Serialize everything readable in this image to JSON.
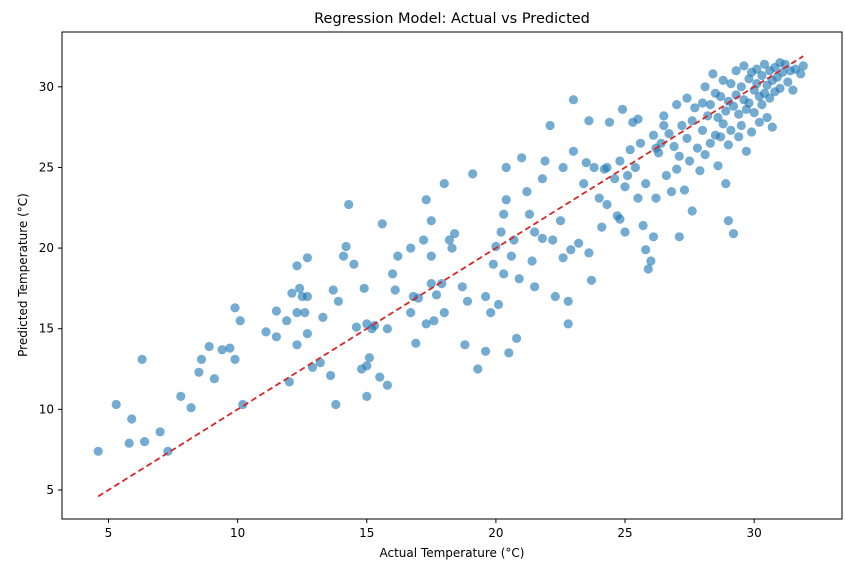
{
  "chart_data": {
    "type": "scatter",
    "title": "Regression Model: Actual vs Predicted",
    "xlabel": "Actual Temperature (°C)",
    "ylabel": "Predicted Temperature (°C)",
    "xlim": [
      3.2,
      33.4
    ],
    "ylim": [
      3.2,
      33.4
    ],
    "xticks": [
      5,
      10,
      15,
      20,
      25,
      30
    ],
    "yticks": [
      5,
      10,
      15,
      20,
      25,
      30
    ],
    "grid": false,
    "colors": {
      "points": "#1f77b4",
      "reference_line": "#d62728"
    },
    "reference_line": {
      "style": "dashed",
      "from": [
        4.6,
        4.6
      ],
      "to": [
        31.9,
        31.9
      ]
    },
    "points": [
      [
        4.6,
        7.4
      ],
      [
        5.3,
        10.3
      ],
      [
        5.8,
        7.9
      ],
      [
        5.9,
        9.4
      ],
      [
        6.3,
        13.1
      ],
      [
        6.4,
        8.0
      ],
      [
        7.0,
        8.6
      ],
      [
        7.3,
        7.4
      ],
      [
        7.8,
        10.8
      ],
      [
        8.2,
        10.1
      ],
      [
        8.5,
        12.3
      ],
      [
        8.6,
        13.1
      ],
      [
        8.9,
        13.9
      ],
      [
        9.1,
        11.9
      ],
      [
        9.4,
        13.7
      ],
      [
        9.7,
        13.8
      ],
      [
        9.9,
        16.3
      ],
      [
        9.9,
        13.1
      ],
      [
        10.1,
        15.5
      ],
      [
        10.2,
        10.3
      ],
      [
        11.1,
        14.8
      ],
      [
        11.5,
        16.1
      ],
      [
        11.5,
        14.5
      ],
      [
        11.9,
        15.5
      ],
      [
        12.0,
        11.7
      ],
      [
        12.1,
        17.2
      ],
      [
        12.3,
        18.9
      ],
      [
        12.3,
        16.0
      ],
      [
        12.3,
        14.0
      ],
      [
        12.4,
        17.5
      ],
      [
        12.5,
        17.0
      ],
      [
        12.6,
        16.0
      ],
      [
        12.7,
        19.4
      ],
      [
        12.7,
        17.0
      ],
      [
        12.7,
        14.7
      ],
      [
        12.9,
        12.6
      ],
      [
        13.2,
        12.9
      ],
      [
        13.3,
        15.7
      ],
      [
        13.6,
        12.1
      ],
      [
        13.7,
        17.4
      ],
      [
        13.8,
        10.3
      ],
      [
        13.9,
        16.7
      ],
      [
        14.1,
        19.5
      ],
      [
        14.2,
        20.1
      ],
      [
        14.3,
        22.7
      ],
      [
        14.5,
        19.0
      ],
      [
        14.6,
        15.1
      ],
      [
        14.8,
        12.5
      ],
      [
        14.9,
        17.5
      ],
      [
        15.0,
        15.3
      ],
      [
        15.0,
        12.7
      ],
      [
        15.0,
        10.8
      ],
      [
        15.1,
        13.2
      ],
      [
        15.2,
        15.0
      ],
      [
        15.3,
        15.2
      ],
      [
        15.5,
        12.0
      ],
      [
        15.6,
        21.5
      ],
      [
        15.8,
        11.5
      ],
      [
        15.8,
        15.0
      ],
      [
        16.0,
        18.4
      ],
      [
        16.1,
        17.4
      ],
      [
        16.2,
        19.5
      ],
      [
        16.7,
        20.0
      ],
      [
        16.7,
        16.0
      ],
      [
        16.8,
        17.0
      ],
      [
        16.9,
        14.1
      ],
      [
        17.0,
        16.9
      ],
      [
        17.2,
        20.5
      ],
      [
        17.3,
        15.3
      ],
      [
        17.3,
        23.0
      ],
      [
        17.5,
        21.7
      ],
      [
        17.5,
        19.5
      ],
      [
        17.5,
        17.8
      ],
      [
        17.6,
        15.5
      ],
      [
        17.7,
        17.1
      ],
      [
        17.9,
        17.8
      ],
      [
        18.0,
        16.0
      ],
      [
        18.0,
        24.0
      ],
      [
        18.2,
        20.5
      ],
      [
        18.3,
        20.0
      ],
      [
        18.4,
        20.9
      ],
      [
        18.7,
        17.6
      ],
      [
        18.8,
        14.0
      ],
      [
        18.9,
        16.7
      ],
      [
        19.1,
        24.6
      ],
      [
        19.3,
        12.5
      ],
      [
        19.6,
        13.6
      ],
      [
        19.6,
        17.0
      ],
      [
        19.8,
        16.0
      ],
      [
        19.9,
        19.0
      ],
      [
        20.0,
        20.1
      ],
      [
        20.1,
        16.5
      ],
      [
        20.2,
        21.0
      ],
      [
        20.3,
        22.1
      ],
      [
        20.3,
        18.4
      ],
      [
        20.4,
        23.0
      ],
      [
        20.4,
        25.0
      ],
      [
        20.5,
        13.5
      ],
      [
        20.6,
        19.5
      ],
      [
        20.7,
        20.5
      ],
      [
        20.8,
        14.4
      ],
      [
        20.9,
        18.1
      ],
      [
        21.0,
        25.6
      ],
      [
        21.2,
        23.5
      ],
      [
        21.3,
        22.1
      ],
      [
        21.4,
        19.2
      ],
      [
        21.5,
        21.0
      ],
      [
        21.5,
        17.6
      ],
      [
        21.8,
        20.6
      ],
      [
        21.8,
        24.3
      ],
      [
        21.9,
        25.4
      ],
      [
        22.1,
        27.6
      ],
      [
        22.2,
        20.5
      ],
      [
        22.3,
        17.0
      ],
      [
        22.5,
        21.7
      ],
      [
        22.6,
        19.4
      ],
      [
        22.6,
        25.0
      ],
      [
        22.8,
        16.7
      ],
      [
        22.8,
        15.3
      ],
      [
        22.9,
        19.9
      ],
      [
        23.0,
        26.0
      ],
      [
        23.0,
        29.2
      ],
      [
        23.2,
        20.3
      ],
      [
        23.4,
        24.0
      ],
      [
        23.5,
        25.3
      ],
      [
        23.6,
        19.7
      ],
      [
        23.6,
        27.9
      ],
      [
        23.7,
        18.0
      ],
      [
        23.8,
        25.0
      ],
      [
        24.0,
        23.1
      ],
      [
        24.1,
        21.3
      ],
      [
        24.2,
        24.9
      ],
      [
        24.3,
        22.7
      ],
      [
        24.3,
        25.0
      ],
      [
        24.4,
        27.8
      ],
      [
        24.6,
        24.3
      ],
      [
        24.7,
        22.0
      ],
      [
        24.8,
        25.4
      ],
      [
        24.9,
        28.6
      ],
      [
        25.0,
        21.0
      ],
      [
        25.0,
        23.8
      ],
      [
        25.1,
        24.5
      ],
      [
        25.2,
        26.1
      ],
      [
        25.3,
        27.8
      ],
      [
        25.4,
        25.0
      ],
      [
        25.5,
        23.1
      ],
      [
        25.5,
        28.0
      ],
      [
        25.6,
        26.5
      ],
      [
        25.7,
        21.4
      ],
      [
        25.8,
        19.9
      ],
      [
        25.8,
        24.0
      ],
      [
        25.9,
        18.7
      ],
      [
        26.0,
        19.2
      ],
      [
        26.1,
        20.7
      ],
      [
        26.1,
        27.0
      ],
      [
        26.2,
        23.1
      ],
      [
        26.3,
        25.9
      ],
      [
        26.4,
        26.5
      ],
      [
        26.5,
        27.6
      ],
      [
        26.5,
        28.2
      ],
      [
        26.6,
        24.5
      ],
      [
        26.7,
        27.1
      ],
      [
        26.8,
        23.5
      ],
      [
        26.9,
        26.3
      ],
      [
        27.0,
        28.9
      ],
      [
        27.0,
        24.9
      ],
      [
        27.1,
        25.7
      ],
      [
        27.1,
        20.7
      ],
      [
        27.2,
        27.6
      ],
      [
        27.3,
        23.6
      ],
      [
        27.4,
        29.3
      ],
      [
        27.4,
        26.8
      ],
      [
        27.5,
        25.4
      ],
      [
        27.6,
        22.3
      ],
      [
        27.6,
        27.9
      ],
      [
        27.7,
        28.7
      ],
      [
        27.8,
        26.2
      ],
      [
        27.9,
        24.8
      ],
      [
        28.0,
        29.0
      ],
      [
        28.0,
        27.3
      ],
      [
        28.1,
        25.8
      ],
      [
        28.1,
        30.0
      ],
      [
        28.2,
        28.2
      ],
      [
        28.3,
        26.5
      ],
      [
        28.3,
        28.9
      ],
      [
        28.4,
        30.8
      ],
      [
        28.5,
        27.0
      ],
      [
        28.5,
        29.6
      ],
      [
        28.6,
        25.1
      ],
      [
        28.6,
        28.1
      ],
      [
        28.7,
        29.4
      ],
      [
        28.7,
        26.9
      ],
      [
        28.8,
        27.7
      ],
      [
        28.8,
        30.4
      ],
      [
        28.9,
        24.0
      ],
      [
        28.9,
        28.5
      ],
      [
        29.0,
        29.1
      ],
      [
        29.0,
        26.4
      ],
      [
        29.1,
        30.2
      ],
      [
        29.1,
        27.3
      ],
      [
        29.2,
        28.8
      ],
      [
        29.2,
        20.9
      ],
      [
        29.3,
        29.5
      ],
      [
        29.3,
        31.0
      ],
      [
        29.4,
        26.9
      ],
      [
        29.4,
        28.3
      ],
      [
        29.5,
        30.0
      ],
      [
        29.5,
        27.6
      ],
      [
        29.6,
        29.2
      ],
      [
        29.6,
        31.3
      ],
      [
        29.7,
        28.6
      ],
      [
        29.7,
        26.0
      ],
      [
        29.8,
        30.5
      ],
      [
        29.8,
        29.0
      ],
      [
        29.9,
        27.2
      ],
      [
        29.9,
        30.9
      ],
      [
        30.0,
        28.4
      ],
      [
        30.0,
        29.8
      ],
      [
        30.1,
        31.1
      ],
      [
        30.1,
        30.2
      ],
      [
        30.2,
        29.4
      ],
      [
        30.2,
        27.8
      ],
      [
        30.3,
        30.7
      ],
      [
        30.3,
        28.9
      ],
      [
        30.4,
        31.4
      ],
      [
        30.4,
        29.6
      ],
      [
        30.5,
        30.1
      ],
      [
        30.5,
        28.1
      ],
      [
        30.6,
        31.0
      ],
      [
        30.6,
        29.3
      ],
      [
        30.7,
        30.4
      ],
      [
        30.7,
        27.5
      ],
      [
        30.8,
        31.2
      ],
      [
        30.8,
        29.7
      ],
      [
        30.9,
        30.6
      ],
      [
        31.0,
        31.5
      ],
      [
        31.0,
        29.9
      ],
      [
        31.1,
        30.9
      ],
      [
        31.2,
        31.4
      ],
      [
        31.3,
        30.3
      ],
      [
        31.4,
        31.0
      ],
      [
        31.5,
        29.8
      ],
      [
        31.6,
        31.1
      ],
      [
        31.8,
        30.8
      ],
      [
        31.9,
        31.3
      ],
      [
        29.0,
        21.7
      ],
      [
        24.8,
        21.8
      ],
      [
        26.2,
        26.2
      ]
    ]
  }
}
